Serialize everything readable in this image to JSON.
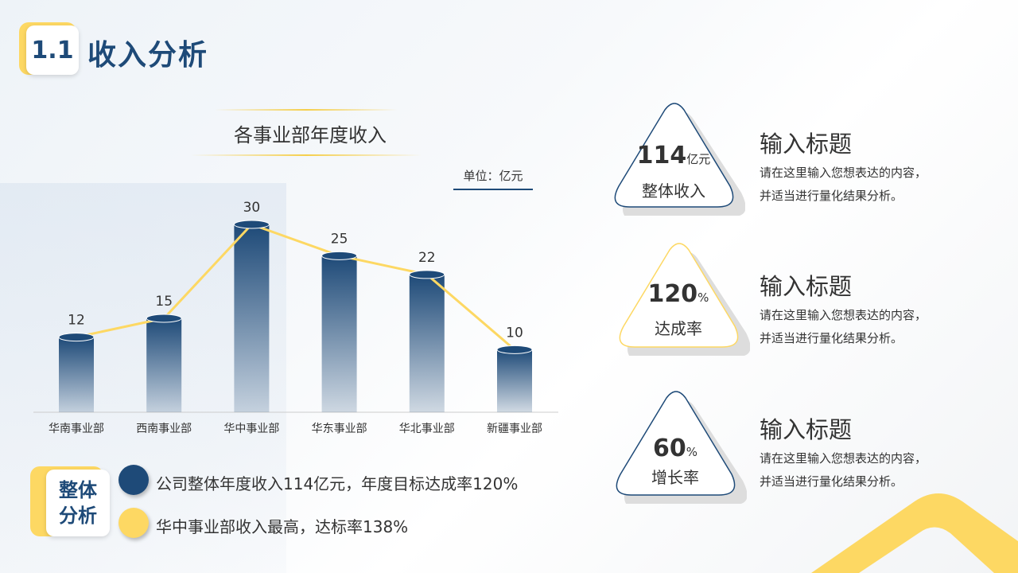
{
  "header": {
    "number": "1.1",
    "title": "收入分析"
  },
  "chart_data": {
    "type": "bar",
    "title": "各事业部年度收入",
    "unit_label": "单位：亿元",
    "categories": [
      "华南事业部",
      "西南事业部",
      "华中事业部",
      "华东事业部",
      "华北事业部",
      "新疆事业部"
    ],
    "values": [
      12,
      15,
      30,
      25,
      22,
      10
    ],
    "overlay_line": true,
    "bar_color": "#1e4a78",
    "line_color": "#fdd863",
    "ylim": [
      0,
      30
    ],
    "grid": false
  },
  "summary": {
    "label_line1": "整体",
    "label_line2": "分析",
    "items": [
      {
        "text": "公司整体年度收入114亿元，年度目标达成率120%",
        "color": "#1e4a78"
      },
      {
        "text": "华中事业部收入最高，达标率138%",
        "color": "#fdd863"
      }
    ]
  },
  "cards": [
    {
      "value": "114",
      "suffix": "亿元",
      "label": "整体收入",
      "border": "#1e4a78",
      "title": "输入标题",
      "desc1": "请在这里输入您想表达的内容，",
      "desc2": "并适当进行量化结果分析。"
    },
    {
      "value": "120",
      "suffix": "%",
      "label": "达成率",
      "border": "#fdd863",
      "title": "输入标题",
      "desc1": "请在这里输入您想表达的内容，",
      "desc2": "并适当进行量化结果分析。"
    },
    {
      "value": "60",
      "suffix": "%",
      "label": "增长率",
      "border": "#1e4a78",
      "title": "输入标题",
      "desc1": "请在这里输入您想表达的内容，",
      "desc2": "并适当进行量化结果分析。"
    }
  ]
}
